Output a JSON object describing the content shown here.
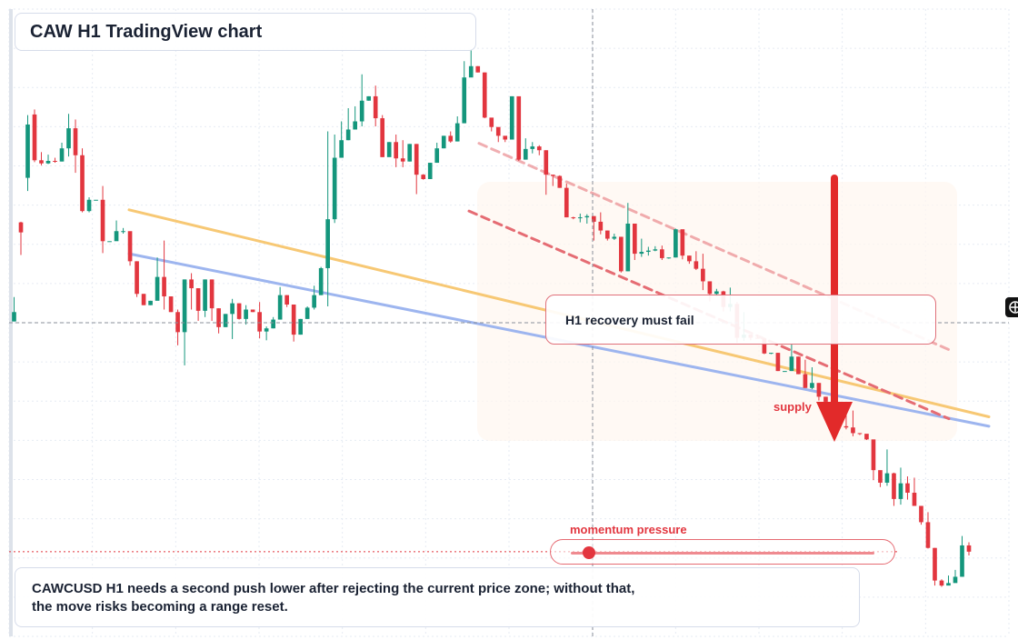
{
  "title": "CAW H1 TradingView chart",
  "callout": "H1 recovery must fail",
  "supply_label": "supply",
  "momentum": {
    "label": "momentum pressure",
    "level": 0.06
  },
  "note": {
    "line1": "CAWCUSD H1 needs a second push lower after rejecting the current price zone; without that,",
    "line2": "the move risks becoming a range reset."
  },
  "colors": {
    "bull": "#14967c",
    "bear": "#e2363f",
    "orange_line": "#f7c874",
    "blue_line": "#9db5ef",
    "dashed_red": "#e56c73",
    "arrow": "#e22a2a"
  },
  "icons": [
    "crosshair-icon",
    "down-arrow-icon"
  ],
  "chart_data": {
    "type": "candlestick",
    "title": "CAW H1 TradingView chart",
    "xlabel": "",
    "ylabel": "",
    "grid": true,
    "ylim": [
      0,
      100
    ],
    "candles": [
      [
        50.2,
        51.7,
        54.1,
        50.2
      ],
      [
        66.0,
        64.4,
        66.1,
        60.8
      ],
      [
        73.1,
        81.6,
        83.1,
        71.0
      ],
      [
        83.2,
        75.9,
        84.0,
        75.6
      ],
      [
        75.9,
        75.4,
        77.2,
        75.1
      ],
      [
        75.4,
        75.8,
        76.8,
        75.3
      ],
      [
        75.8,
        75.7,
        76.3,
        75.5
      ],
      [
        75.7,
        77.8,
        78.7,
        75.7
      ],
      [
        77.8,
        81.0,
        83.3,
        76.5
      ],
      [
        81.0,
        76.7,
        82.4,
        73.9
      ],
      [
        76.7,
        67.8,
        77.8,
        67.6
      ],
      [
        67.8,
        69.6,
        70.0,
        67.6
      ],
      [
        69.6,
        69.6,
        69.6,
        69.6
      ],
      [
        69.6,
        63.0,
        71.8,
        61.1
      ],
      [
        63.0,
        63.0,
        63.0,
        63.0
      ],
      [
        63.0,
        64.6,
        66.3,
        64.1
      ],
      [
        64.6,
        64.6,
        65.1,
        64.2
      ],
      [
        64.6,
        59.8,
        62.9,
        59.1
      ],
      [
        59.8,
        54.6,
        59.8,
        54.1
      ],
      [
        54.6,
        52.8,
        54.6,
        52.8
      ],
      [
        52.8,
        53.5,
        53.5,
        52.8
      ],
      [
        53.5,
        57.3,
        60.4,
        56.6
      ],
      [
        57.3,
        54.2,
        63.1,
        52.1
      ],
      [
        54.2,
        51.7,
        54.2,
        51.7
      ],
      [
        51.7,
        48.5,
        52.1,
        46.4
      ],
      [
        48.5,
        56.9,
        56.9,
        43.2
      ],
      [
        56.9,
        55.5,
        57.9,
        52.1
      ],
      [
        55.5,
        51.9,
        55.5,
        50.3
      ],
      [
        51.9,
        56.9,
        56.9,
        50.9
      ],
      [
        56.9,
        52.3,
        56.9,
        50.3
      ],
      [
        52.3,
        49.3,
        52.3,
        48.3
      ],
      [
        49.3,
        51.4,
        51.4,
        49.3
      ],
      [
        51.4,
        53.1,
        53.8,
        47.4
      ],
      [
        53.1,
        50.6,
        53.1,
        50.5
      ],
      [
        50.6,
        52.1,
        52.8,
        49.7
      ],
      [
        52.1,
        51.7,
        52.1,
        51.7
      ],
      [
        51.7,
        48.6,
        53.3,
        47.5
      ],
      [
        48.6,
        49.1,
        49.4,
        47.2
      ],
      [
        49.1,
        50.5,
        50.9,
        49.1
      ],
      [
        50.5,
        54.4,
        55.7,
        50.5
      ],
      [
        54.4,
        52.9,
        54.4,
        52.5
      ],
      [
        52.9,
        48.1,
        52.9,
        47.0
      ],
      [
        48.1,
        50.6,
        50.6,
        48.1
      ],
      [
        50.6,
        52.4,
        52.6,
        50.6
      ],
      [
        52.4,
        54.4,
        55.9,
        52.1
      ],
      [
        54.4,
        58.7,
        58.9,
        54.4
      ],
      [
        58.7,
        66.5,
        80.5,
        52.6
      ],
      [
        66.5,
        76.3,
        80.0,
        65.9
      ],
      [
        76.3,
        79.1,
        82.1,
        76.3
      ],
      [
        79.1,
        80.8,
        84.2,
        79.1
      ],
      [
        80.8,
        82.1,
        84.5,
        80.8
      ],
      [
        82.1,
        85.4,
        89.6,
        81.3
      ],
      [
        85.4,
        86.1,
        86.1,
        85.4
      ],
      [
        86.1,
        82.6,
        87.8,
        81.3
      ],
      [
        82.6,
        76.4,
        83.1,
        76.4
      ],
      [
        76.4,
        78.8,
        78.8,
        77.2
      ],
      [
        78.8,
        76.2,
        80.0,
        74.8
      ],
      [
        76.2,
        75.7,
        79.1,
        74.8
      ],
      [
        75.7,
        78.5,
        78.5,
        75.7
      ],
      [
        78.5,
        73.6,
        78.5,
        70.5
      ],
      [
        73.6,
        72.9,
        73.7,
        72.8
      ],
      [
        72.9,
        75.5,
        75.5,
        72.9
      ],
      [
        75.5,
        77.8,
        78.7,
        75.5
      ],
      [
        77.8,
        79.8,
        79.8,
        77.8
      ],
      [
        79.8,
        78.9,
        80.5,
        78.7
      ],
      [
        78.9,
        81.8,
        82.9,
        78.9
      ],
      [
        81.8,
        89.1,
        91.7,
        81.8
      ],
      [
        89.1,
        90.9,
        93.5,
        89.2
      ],
      [
        90.9,
        89.9,
        90.9,
        89.9
      ],
      [
        89.9,
        82.7,
        89.9,
        82.6
      ],
      [
        82.7,
        81.2,
        81.4,
        80.5
      ],
      [
        81.2,
        79.8,
        80.7,
        78.8
      ],
      [
        79.8,
        79.2,
        79.2,
        78.8
      ],
      [
        79.2,
        86.1,
        86.1,
        79.2
      ],
      [
        86.1,
        76.0,
        80.2,
        75.8
      ],
      [
        76.0,
        77.7,
        79.4,
        76.0
      ],
      [
        77.7,
        78.1,
        78.8,
        77.0
      ],
      [
        78.1,
        77.5,
        78.3,
        76.7
      ],
      [
        77.5,
        73.6,
        77.5,
        70.4
      ],
      [
        73.6,
        73.4,
        73.6,
        71.8
      ],
      [
        73.4,
        71.5,
        73.5,
        71.5
      ],
      [
        71.5,
        66.8,
        72.2,
        66.8
      ],
      [
        66.8,
        66.7,
        66.9,
        66.5
      ],
      [
        66.7,
        66.8,
        67.4,
        66.0
      ],
      [
        66.8,
        67.0,
        67.3,
        65.8
      ],
      [
        67.0,
        66.1,
        67.0,
        63.1
      ],
      [
        66.1,
        64.7,
        67.6,
        64.1
      ],
      [
        64.7,
        63.4,
        64.7,
        63.1
      ],
      [
        63.4,
        63.7,
        64.2,
        63.2
      ],
      [
        63.7,
        58.2,
        63.7,
        58.0
      ],
      [
        58.2,
        65.8,
        69.1,
        58.2
      ],
      [
        65.8,
        61.0,
        62.6,
        60.0
      ],
      [
        61.0,
        61.3,
        63.4,
        60.5
      ],
      [
        61.3,
        61.5,
        62.1,
        60.7
      ],
      [
        61.5,
        61.7,
        62.2,
        61.4
      ],
      [
        61.7,
        60.3,
        62.3,
        60.0
      ],
      [
        60.3,
        60.4,
        60.4,
        60.2
      ],
      [
        60.4,
        64.9,
        65.0,
        60.4
      ],
      [
        64.9,
        60.7,
        61.2,
        60.1
      ],
      [
        60.7,
        59.8,
        60.7,
        59.4
      ],
      [
        59.8,
        58.6,
        61.4,
        58.4
      ],
      [
        58.6,
        56.6,
        61.0,
        55.2
      ],
      [
        56.6,
        54.6,
        56.6,
        53.4
      ],
      [
        54.6,
        55.0,
        55.4,
        54.2
      ],
      [
        55.0,
        52.5,
        55.1,
        51.8
      ],
      [
        52.5,
        53.0,
        55.6,
        51.8
      ],
      [
        53.0,
        47.6,
        53.3,
        46.8
      ],
      [
        47.6,
        48.1,
        51.7,
        47.1
      ],
      [
        48.1,
        47.6,
        48.1,
        47.2
      ],
      [
        47.6,
        47.5,
        48.1,
        47.5
      ],
      [
        47.5,
        45.1,
        47.5,
        45.0
      ],
      [
        45.1,
        45.2,
        45.2,
        45.0
      ],
      [
        45.2,
        42.3,
        45.2,
        42.3
      ],
      [
        42.3,
        42.3,
        42.3,
        42.3
      ],
      [
        42.3,
        44.6,
        46.6,
        42.3
      ],
      [
        44.6,
        41.8,
        44.6,
        41.8
      ],
      [
        41.8,
        39.6,
        44.1,
        39.6
      ],
      [
        39.6,
        40.4,
        42.9,
        39.4
      ],
      [
        40.4,
        38.2,
        40.4,
        37.6
      ],
      [
        38.2,
        37.4,
        38.2,
        37.4
      ],
      [
        37.4,
        34.2,
        37.4,
        34.2
      ],
      [
        34.2,
        33.5,
        37.3,
        33.1
      ],
      [
        33.5,
        33.3,
        35.6,
        33.0
      ],
      [
        33.3,
        32.4,
        36.0,
        31.9
      ],
      [
        32.4,
        32.3,
        32.4,
        32.1
      ],
      [
        32.3,
        31.4,
        31.6,
        31.3
      ],
      [
        31.4,
        26.5,
        26.7,
        24.9
      ],
      [
        26.5,
        24.5,
        26.4,
        23.8
      ],
      [
        24.5,
        26.0,
        29.8,
        24.0
      ],
      [
        26.0,
        21.9,
        26.1,
        20.8
      ],
      [
        21.9,
        24.4,
        26.9,
        21.0
      ],
      [
        24.4,
        22.9,
        25.5,
        21.8
      ],
      [
        22.9,
        20.8,
        25.3,
        20.8
      ],
      [
        20.8,
        18.2,
        20.8,
        17.8
      ],
      [
        18.2,
        14.1,
        19.8,
        14.0
      ],
      [
        14.1,
        8.9,
        14.1,
        8.1
      ],
      [
        8.9,
        8.1,
        9.1,
        7.9
      ],
      [
        8.1,
        8.5,
        9.7,
        8.2
      ],
      [
        8.5,
        9.5,
        10.6,
        9.4
      ],
      [
        9.5,
        14.5,
        16.0,
        9.5
      ],
      [
        14.5,
        13.5,
        15.0,
        12.9
      ]
    ],
    "trendlines": [
      {
        "name": "",
        "color": "orange",
        "from": [
          0.12,
          68.0
        ],
        "to": [
          0.98,
          35.0
        ]
      },
      {
        "name": "",
        "color": "blue",
        "from": [
          0.12,
          61.0
        ],
        "to": [
          0.98,
          33.5
        ]
      },
      {
        "name": "",
        "color": "red-dashed",
        "from": [
          0.47,
          78.6
        ],
        "to": [
          0.94,
          45.7
        ]
      },
      {
        "name": "",
        "color": "red-dashed",
        "from": [
          0.46,
          67.8
        ],
        "to": [
          0.94,
          34.7
        ]
      }
    ],
    "current_price": 50.0,
    "support_level": 13.5
  }
}
